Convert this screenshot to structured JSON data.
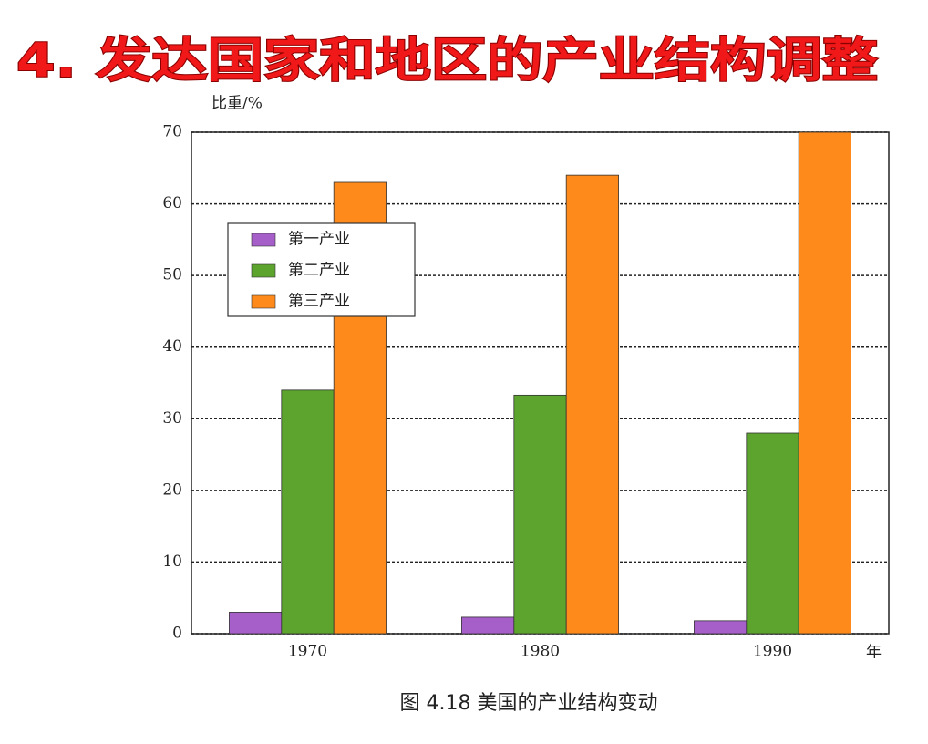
{
  "chart_data": {
    "type": "bar",
    "title": "4. 发达国家和地区的产业结构调整",
    "y_label": "比重/%",
    "x_label": "年",
    "caption": "图 4.18   美国的产业结构变动",
    "categories": [
      "1970",
      "1980",
      "1990"
    ],
    "series": [
      {
        "name": "第一产业",
        "color": "#a65ec8",
        "values": [
          3,
          2.3,
          1.8
        ]
      },
      {
        "name": "第二产业",
        "color": "#5ca42e",
        "values": [
          34,
          33.3,
          28
        ]
      },
      {
        "name": "第三产业",
        "color": "#ff8a1c",
        "values": [
          63,
          64,
          70
        ]
      }
    ],
    "ylim": [
      0,
      70
    ],
    "yticks": [
      0,
      10,
      20,
      30,
      40,
      50,
      60,
      70
    ],
    "grid": true,
    "legend": "upper left"
  }
}
